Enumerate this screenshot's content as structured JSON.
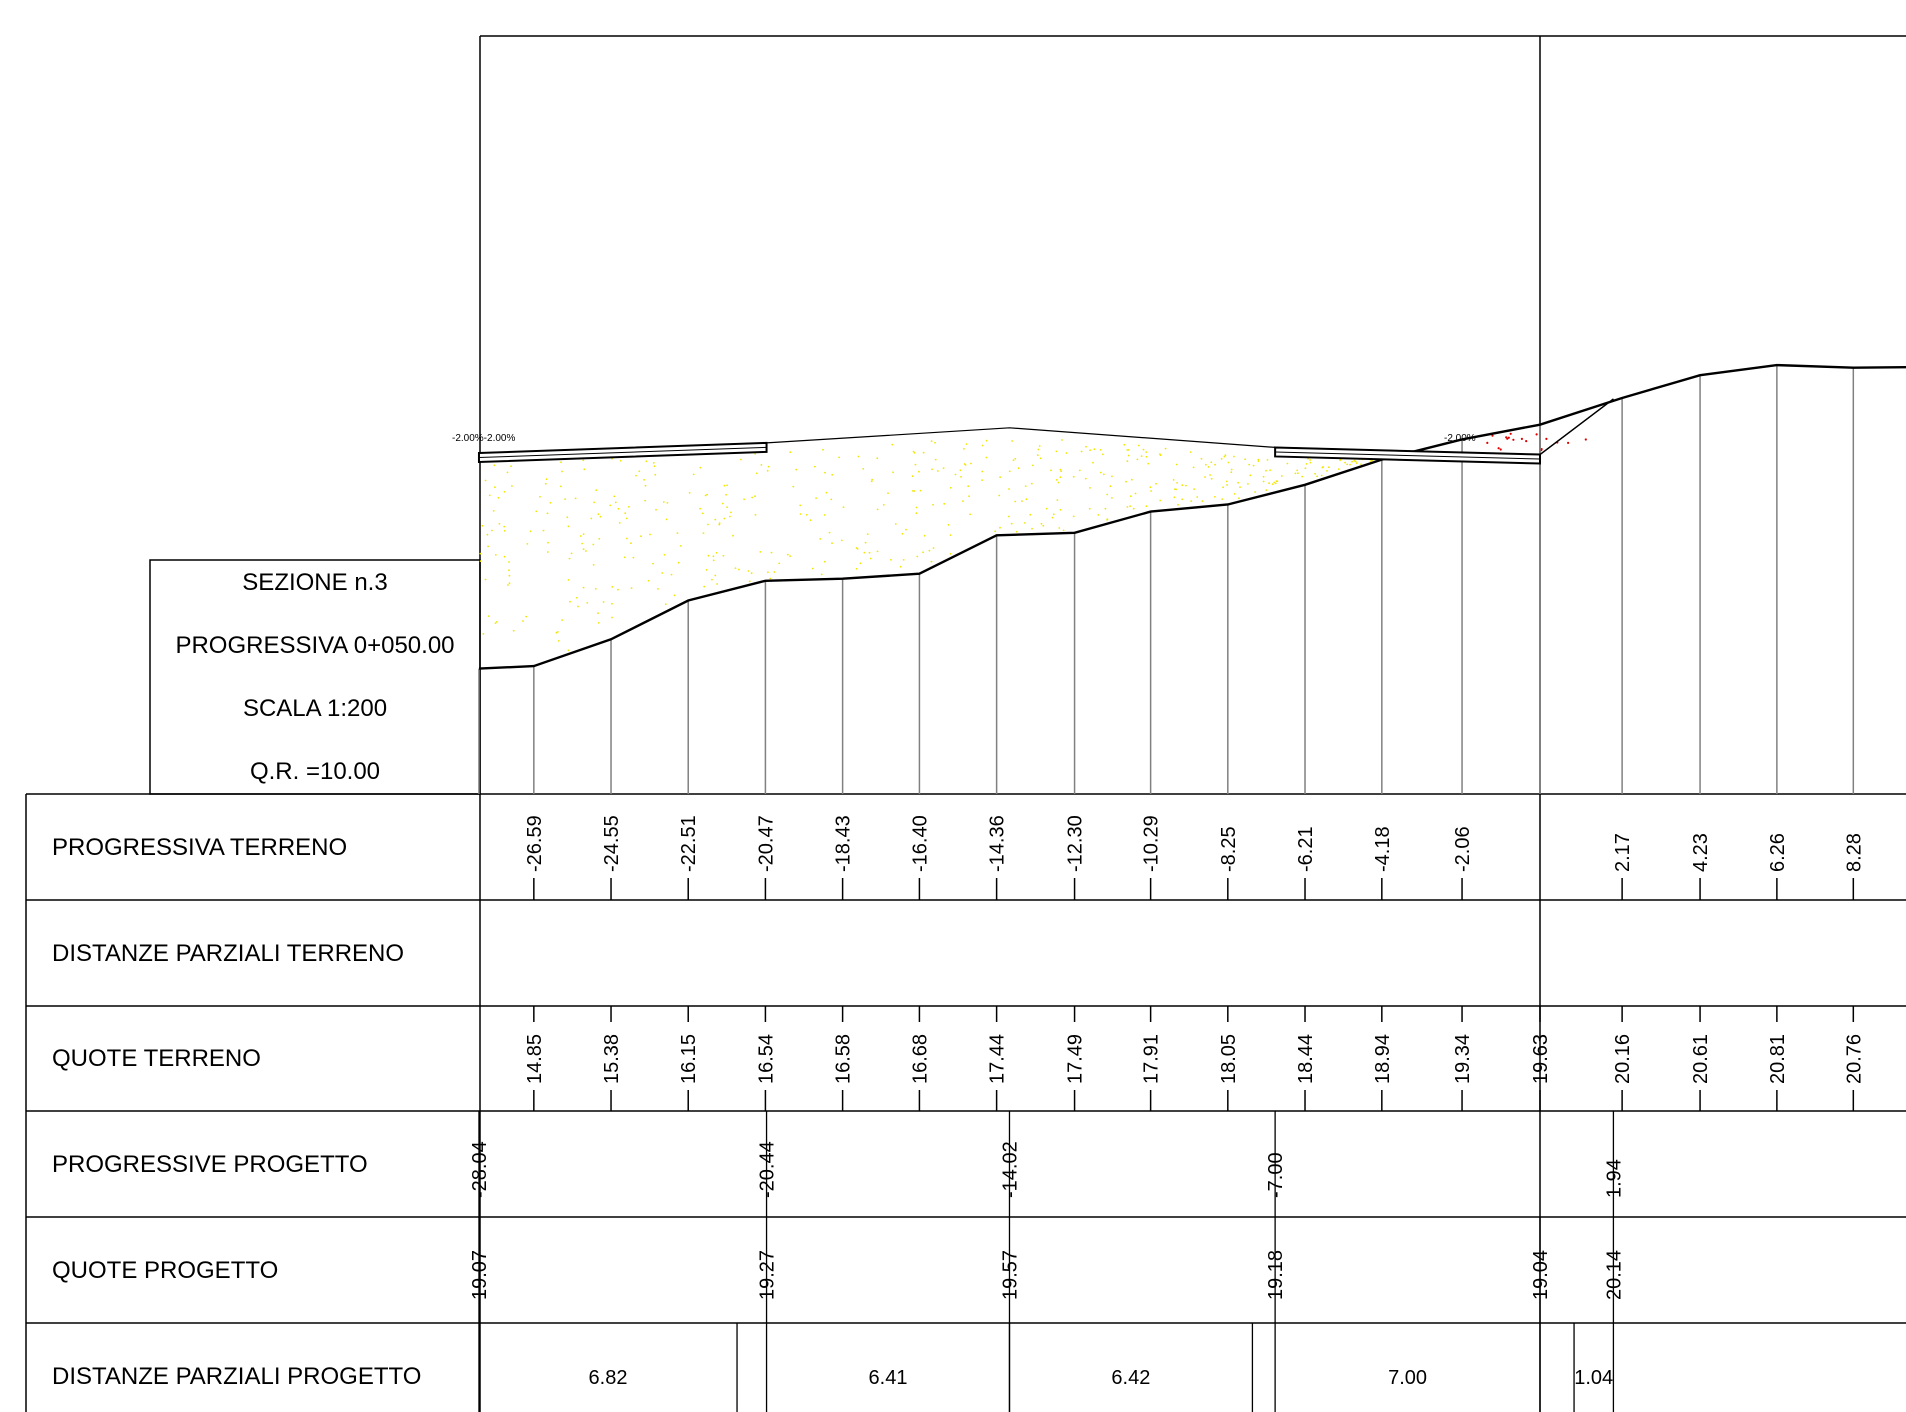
{
  "title_block": {
    "section": "SEZIONE  n.3",
    "progressive": "PROGRESSIVA 0+050.00",
    "scale": "SCALA 1:200",
    "reference": "Q.R. =10.00"
  },
  "rows": [
    {
      "id": "prog-terreno",
      "label": "PROGRESSIVA TERRENO"
    },
    {
      "id": "dist-terreno",
      "label": "DISTANZE PARZIALI TERRENO"
    },
    {
      "id": "quote-terreno",
      "label": "QUOTE TERRENO"
    },
    {
      "id": "prog-progetto",
      "label": "PROGRESSIVE PROGETTO"
    },
    {
      "id": "quote-progetto",
      "label": "QUOTE PROGETTO"
    },
    {
      "id": "dist-progetto",
      "label": "DISTANZE PARZIALI PROGETTO"
    }
  ],
  "slope_labels": {
    "left": "-2.00%-2.00%",
    "right": "-2.00%"
  },
  "terrain_points": [
    {
      "x": -28.04,
      "z": 14.8
    },
    {
      "x": -26.59,
      "z": 14.85
    },
    {
      "x": -24.55,
      "z": 15.38
    },
    {
      "x": -22.51,
      "z": 16.15
    },
    {
      "x": -20.47,
      "z": 16.54
    },
    {
      "x": -18.43,
      "z": 16.58
    },
    {
      "x": -16.4,
      "z": 16.68
    },
    {
      "x": -14.36,
      "z": 17.44
    },
    {
      "x": -12.3,
      "z": 17.49
    },
    {
      "x": -10.29,
      "z": 17.91
    },
    {
      "x": -8.25,
      "z": 18.05
    },
    {
      "x": -6.21,
      "z": 18.44
    },
    {
      "x": -4.18,
      "z": 18.94
    },
    {
      "x": -2.06,
      "z": 19.34
    },
    {
      "x": 0.0,
      "z": 19.63
    },
    {
      "x": 2.17,
      "z": 20.16
    },
    {
      "x": 4.23,
      "z": 20.61
    },
    {
      "x": 6.26,
      "z": 20.81
    },
    {
      "x": 8.28,
      "z": 20.76
    }
  ],
  "progressiva_terreno": [
    "-26.59",
    "-24.55",
    "-22.51",
    "-20.47",
    "-18.43",
    "-16.40",
    "-14.36",
    "-12.30",
    "-10.29",
    "-8.25",
    "-6.21",
    "-4.18",
    "-2.06",
    "2.17",
    "4.23",
    "6.26",
    "8.28"
  ],
  "quote_terreno": [
    "14.85",
    "15.38",
    "16.15",
    "16.54",
    "16.58",
    "16.68",
    "17.44",
    "17.49",
    "17.91",
    "18.05",
    "18.44",
    "18.94",
    "19.34",
    "19.63",
    "20.16",
    "20.61",
    "20.81",
    "20.76"
  ],
  "quote_terreno_x": [
    -26.59,
    -24.55,
    -22.51,
    -20.47,
    -18.43,
    -16.4,
    -14.36,
    -12.3,
    -10.29,
    -8.25,
    -6.21,
    -4.18,
    -2.06,
    0.0,
    2.17,
    4.23,
    6.26,
    8.28
  ],
  "progressive_progetto": [
    {
      "x": -28.04,
      "label": "-28.04"
    },
    {
      "x": -20.44,
      "label": "-20.44"
    },
    {
      "x": -14.02,
      "label": "-14.02"
    },
    {
      "x": -7.0,
      "label": "-7.00"
    },
    {
      "x": 1.94,
      "label": "1.94"
    }
  ],
  "quote_progetto": [
    {
      "x": -28.04,
      "label": "19.07"
    },
    {
      "x": -20.44,
      "label": "19.27"
    },
    {
      "x": -14.02,
      "label": "19.57"
    },
    {
      "x": -7.0,
      "label": "19.18"
    },
    {
      "x": 0.0,
      "label": "19.04"
    },
    {
      "x": 1.94,
      "label": "20.14"
    }
  ],
  "distanze_parziali_progetto": [
    {
      "from": -28.04,
      "to": -21.22,
      "label": "6.82"
    },
    {
      "from": -20.44,
      "to": -14.02,
      "label": "6.41"
    },
    {
      "from": -14.02,
      "to": -7.6,
      "label": "6.42"
    },
    {
      "from": -7.0,
      "to": 0.0,
      "label": "7.00"
    },
    {
      "from": 0.9,
      "to": 1.94,
      "label": "1.04"
    }
  ],
  "road_profile": [
    {
      "x": -28.04,
      "z": 19.07
    },
    {
      "x": -20.44,
      "z": 19.27
    },
    {
      "x": -14.02,
      "z": 19.57
    },
    {
      "x": -7.0,
      "z": 19.18
    },
    {
      "x": 0.0,
      "z": 19.04
    },
    {
      "x": 1.94,
      "z": 20.14
    }
  ],
  "colors": {
    "fill_dots": "#f2e600",
    "cut_dots": "#e00000",
    "lines": "#000000",
    "verticals": "#808080"
  }
}
